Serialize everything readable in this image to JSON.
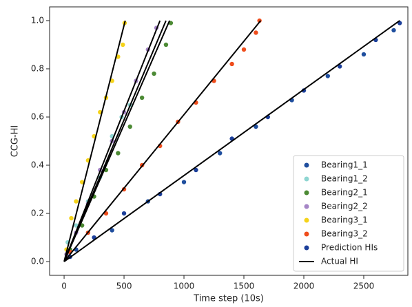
{
  "chart_data": {
    "type": "scatter",
    "x_label": "Time step (10s)",
    "y_label": "CCG-HI",
    "xlim": [
      -121,
      2868
    ],
    "ylim": [
      -0.057,
      1.057
    ],
    "xticks": [
      0,
      500,
      1000,
      1500,
      2000,
      2500
    ],
    "yticks": [
      {
        "value": 0,
        "label": "0.0"
      },
      0.2,
      0.4,
      0.6,
      0.8,
      {
        "value": 1,
        "label": "1.0"
      }
    ],
    "legend": "lower right",
    "series": [
      {
        "name": "Bearing1_1",
        "color": "#1f4e9e",
        "x": [
          100,
          400,
          700,
          1000,
          1300,
          1600,
          1900,
          2200,
          2500,
          2750
        ],
        "values": [
          0.05,
          0.13,
          0.25,
          0.33,
          0.45,
          0.56,
          0.67,
          0.77,
          0.86,
          0.96
        ]
      },
      {
        "name": "Bearing1_2",
        "color": "#8fd6d2",
        "x": [
          30,
          100,
          200,
          300,
          400,
          480,
          550
        ],
        "values": [
          0.08,
          0.15,
          0.25,
          0.35,
          0.52,
          0.6,
          0.65
        ]
      },
      {
        "name": "Bearing2_1",
        "color": "#4c8a34",
        "x": [
          50,
          150,
          250,
          350,
          450,
          550,
          650,
          750,
          850,
          890
        ],
        "values": [
          0.05,
          0.15,
          0.27,
          0.38,
          0.45,
          0.56,
          0.68,
          0.78,
          0.9,
          0.99
        ]
      },
      {
        "name": "Bearing2_2",
        "color": "#a585c6",
        "x": [
          20,
          100,
          200,
          300,
          400,
          500,
          600,
          700,
          770
        ],
        "values": [
          0.03,
          0.12,
          0.24,
          0.38,
          0.5,
          0.62,
          0.75,
          0.88,
          0.97
        ]
      },
      {
        "name": "Bearing3_1",
        "color": "#f5d31a",
        "x": [
          20,
          60,
          100,
          150,
          200,
          250,
          300,
          350,
          400,
          450,
          490,
          505
        ],
        "values": [
          0.05,
          0.18,
          0.25,
          0.33,
          0.42,
          0.52,
          0.62,
          0.68,
          0.75,
          0.85,
          0.9,
          0.99
        ]
      },
      {
        "name": "Bearing3_2",
        "color": "#ef4d1c",
        "x": [
          50,
          200,
          350,
          500,
          650,
          800,
          950,
          1100,
          1250,
          1400,
          1500,
          1600,
          1630
        ],
        "values": [
          0.04,
          0.12,
          0.2,
          0.3,
          0.4,
          0.48,
          0.58,
          0.66,
          0.75,
          0.82,
          0.88,
          0.95,
          1.0
        ]
      },
      {
        "name": "Prediction HIs",
        "color": "#1c3f9a",
        "x": [
          50,
          250,
          500,
          800,
          1100,
          1400,
          1700,
          2000,
          2300,
          2600,
          2800
        ],
        "values": [
          0.02,
          0.1,
          0.2,
          0.28,
          0.38,
          0.51,
          0.6,
          0.71,
          0.81,
          0.92,
          0.99
        ]
      },
      {
        "name": "Actual HI",
        "color": "#000000",
        "mark": "line",
        "x": [
          0,
          510,
          null,
          0,
          800,
          null,
          0,
          850,
          null,
          0,
          880,
          null,
          0,
          1640,
          null,
          0,
          2800
        ],
        "values": [
          0,
          1,
          null,
          0,
          1,
          null,
          0,
          1,
          null,
          0,
          1,
          null,
          0,
          1,
          null,
          0,
          1
        ]
      }
    ]
  }
}
